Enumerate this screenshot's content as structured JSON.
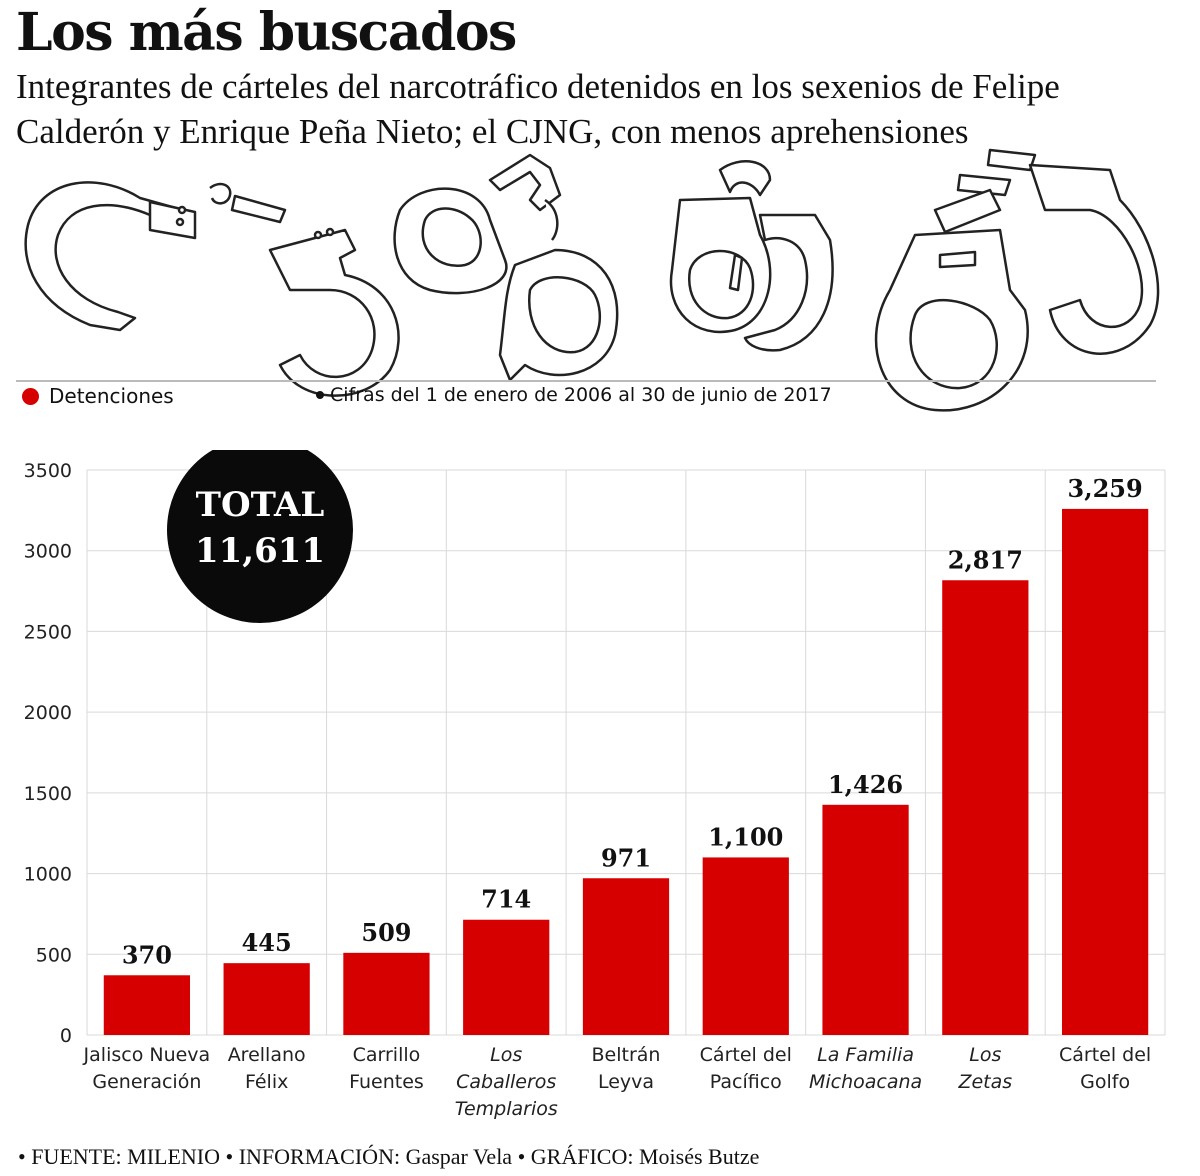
{
  "header": {
    "title": "Los más buscados",
    "subtitle": "Integrantes de cárteles del narcotráfico detenidos en los sexenios de Felipe Calderón y Enrique Peña Nieto; el CJNG, con menos aprehensiones"
  },
  "legend": {
    "label": "Detenciones",
    "note": "Cifras del 1 de enero de 2006 al 30 de junio de 2017",
    "color": "#d60000"
  },
  "total_badge": {
    "line1": "TOTAL",
    "line2": "11,611"
  },
  "chart_data": {
    "type": "bar",
    "categories": [
      [
        "Jalisco Nueva",
        "Generación"
      ],
      [
        "Arellano",
        "Félix"
      ],
      [
        "Carrillo",
        "Fuentes"
      ],
      [
        "Los",
        "Caballeros",
        "Templarios"
      ],
      [
        "Beltrán",
        "Leyva"
      ],
      [
        "Cártel del",
        "Pacífico"
      ],
      [
        "La Familia",
        "Michoacana"
      ],
      [
        "Los",
        "Zetas"
      ],
      [
        "Cártel del",
        "Golfo"
      ]
    ],
    "italic_categories": [
      false,
      false,
      false,
      true,
      false,
      false,
      true,
      true,
      false
    ],
    "values": [
      370,
      445,
      509,
      714,
      971,
      1100,
      1426,
      2817,
      3259
    ],
    "value_labels": [
      "370",
      "445",
      "509",
      "714",
      "971",
      "1,100",
      "1,426",
      "2,817",
      "3,259"
    ],
    "yticks": [
      0,
      500,
      1000,
      1500,
      2000,
      2500,
      3000,
      3500
    ],
    "ylim": [
      0,
      3500
    ],
    "grid": true,
    "bar_color": "#d60000"
  },
  "footer": {
    "fuente_label": "• FUENTE:",
    "fuente_value": "MILENIO",
    "info_label": "• INFORMACIÓN:",
    "info_value": "Gaspar Vela",
    "grafico_label": "• GRÁFICO:",
    "grafico_value": "Moisés Butze"
  }
}
